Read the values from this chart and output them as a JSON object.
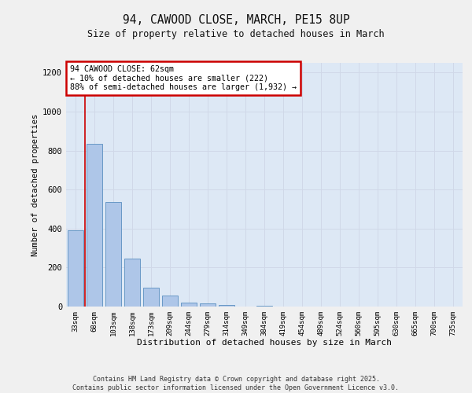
{
  "title1": "94, CAWOOD CLOSE, MARCH, PE15 8UP",
  "title2": "Size of property relative to detached houses in March",
  "xlabel": "Distribution of detached houses by size in March",
  "ylabel": "Number of detached properties",
  "bar_labels": [
    "33sqm",
    "68sqm",
    "103sqm",
    "138sqm",
    "173sqm",
    "209sqm",
    "244sqm",
    "279sqm",
    "314sqm",
    "349sqm",
    "384sqm",
    "419sqm",
    "454sqm",
    "489sqm",
    "524sqm",
    "560sqm",
    "595sqm",
    "630sqm",
    "665sqm",
    "700sqm",
    "735sqm"
  ],
  "bar_values": [
    390,
    835,
    535,
    245,
    95,
    55,
    20,
    15,
    8,
    0,
    5,
    0,
    0,
    0,
    0,
    0,
    0,
    0,
    0,
    0,
    0
  ],
  "bar_color": "#aec6e8",
  "bar_edge_color": "#5a8fc0",
  "grid_color": "#d0d8e8",
  "background_color": "#dde8f5",
  "fig_background_color": "#f0f0f0",
  "annotation_text": "94 CAWOOD CLOSE: 62sqm\n← 10% of detached houses are smaller (222)\n88% of semi-detached houses are larger (1,932) →",
  "vline_x": 0.5,
  "vline_color": "#cc0000",
  "annotation_box_color": "#ffffff",
  "annotation_box_edge": "#cc0000",
  "footer_text": "Contains HM Land Registry data © Crown copyright and database right 2025.\nContains public sector information licensed under the Open Government Licence v3.0.",
  "ylim": [
    0,
    1250
  ],
  "yticks": [
    0,
    200,
    400,
    600,
    800,
    1000,
    1200
  ]
}
